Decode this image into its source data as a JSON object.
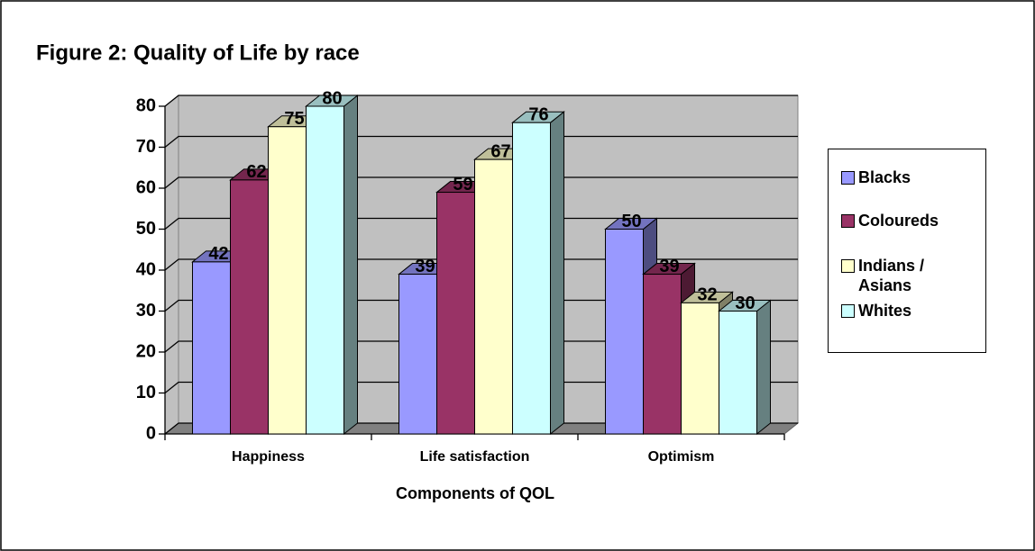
{
  "chart_data": {
    "type": "bar3d",
    "title": "Figure 2: Quality of Life by race",
    "x_label": "Components of QOL",
    "categories": [
      "Happiness",
      "Life satisfaction",
      "Optimism"
    ],
    "series": [
      {
        "name": "Blacks",
        "color": "#9999ff",
        "values": [
          42,
          39,
          50
        ]
      },
      {
        "name": "Coloureds",
        "color": "#993366",
        "values": [
          62,
          59,
          39
        ]
      },
      {
        "name": "Indians / Asians",
        "color": "#ffffcc",
        "values": [
          75,
          67,
          32
        ]
      },
      {
        "name": "Whites",
        "color": "#ccffff",
        "values": [
          80,
          76,
          30
        ]
      }
    ],
    "ylim": [
      0,
      80
    ],
    "yticks": [
      0,
      10,
      20,
      30,
      40,
      50,
      60,
      70,
      80
    ],
    "grid": true,
    "legend": "right"
  }
}
